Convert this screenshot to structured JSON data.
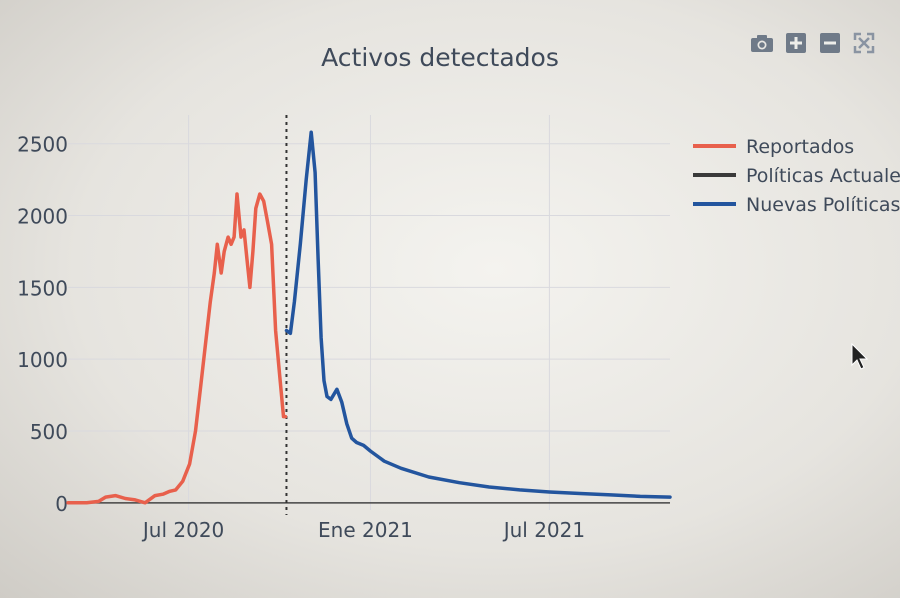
{
  "modebar": {
    "buttons": [
      {
        "name": "camera-icon"
      },
      {
        "name": "zoom-in-icon"
      },
      {
        "name": "zoom-out-icon"
      },
      {
        "name": "autoscale-icon"
      }
    ]
  },
  "colors": {
    "reportados": "#e8604c",
    "politicas_actuales": "#3a3a3a",
    "nuevas_politicas": "#23559e",
    "grid": "#d9d9de",
    "text": "#3f4a5a"
  },
  "chart_data": {
    "type": "line",
    "title": "Activos detectados",
    "xlabel": "",
    "ylabel": "",
    "x_type": "date",
    "xlim": [
      "2020-03-01",
      "2021-10-31"
    ],
    "ylim": [
      -50,
      2700
    ],
    "x_ticks": [
      {
        "date": "2020-07-01",
        "label": "Jul 2020"
      },
      {
        "date": "2021-01-01",
        "label": "Ene 2021"
      },
      {
        "date": "2021-07-01",
        "label": "Jul 2021"
      }
    ],
    "y_ticks": [
      0,
      500,
      1000,
      1500,
      2000,
      2500
    ],
    "grid": true,
    "legend_position": "top-right",
    "vline": {
      "date": "2020-10-08",
      "style": "dotted"
    },
    "series": [
      {
        "name": "Reportados",
        "color": "#e8604c",
        "x": [
          "2020-03-01",
          "2020-03-20",
          "2020-04-01",
          "2020-04-08",
          "2020-04-18",
          "2020-04-28",
          "2020-05-08",
          "2020-05-18",
          "2020-05-28",
          "2020-06-05",
          "2020-06-12",
          "2020-06-18",
          "2020-06-25",
          "2020-07-02",
          "2020-07-08",
          "2020-07-13",
          "2020-07-18",
          "2020-07-23",
          "2020-07-27",
          "2020-07-30",
          "2020-08-03",
          "2020-08-06",
          "2020-08-10",
          "2020-08-13",
          "2020-08-16",
          "2020-08-19",
          "2020-08-23",
          "2020-08-26",
          "2020-08-29",
          "2020-09-01",
          "2020-09-04",
          "2020-09-07",
          "2020-09-11",
          "2020-09-15",
          "2020-09-19",
          "2020-09-23",
          "2020-09-27",
          "2020-10-01",
          "2020-10-05",
          "2020-10-07"
        ],
        "y": [
          0,
          0,
          10,
          40,
          50,
          30,
          20,
          0,
          50,
          60,
          80,
          90,
          150,
          270,
          500,
          800,
          1100,
          1400,
          1600,
          1800,
          1600,
          1750,
          1850,
          1800,
          1850,
          2150,
          1850,
          1900,
          1700,
          1500,
          1750,
          2050,
          2150,
          2100,
          1950,
          1800,
          1200,
          900,
          600,
          600
        ]
      },
      {
        "name": "Políticas Actuales",
        "color": "#3a3a3a",
        "x": [],
        "y": []
      },
      {
        "name": "Nuevas Políticas",
        "color": "#23559e",
        "x": [
          "2020-10-08",
          "2020-10-12",
          "2020-10-16",
          "2020-10-22",
          "2020-10-28",
          "2020-11-02",
          "2020-11-06",
          "2020-11-09",
          "2020-11-12",
          "2020-11-15",
          "2020-11-18",
          "2020-11-22",
          "2020-11-28",
          "2020-12-03",
          "2020-12-08",
          "2020-12-13",
          "2020-12-18",
          "2020-12-25",
          "2021-01-01",
          "2021-01-15",
          "2021-02-01",
          "2021-03-01",
          "2021-04-01",
          "2021-05-01",
          "2021-06-01",
          "2021-07-01",
          "2021-08-01",
          "2021-09-01",
          "2021-10-01",
          "2021-10-31"
        ],
        "y": [
          1200,
          1180,
          1400,
          1800,
          2250,
          2580,
          2300,
          1700,
          1150,
          850,
          740,
          720,
          790,
          700,
          550,
          450,
          420,
          400,
          360,
          290,
          240,
          180,
          140,
          110,
          90,
          75,
          65,
          55,
          45,
          40
        ]
      }
    ]
  }
}
